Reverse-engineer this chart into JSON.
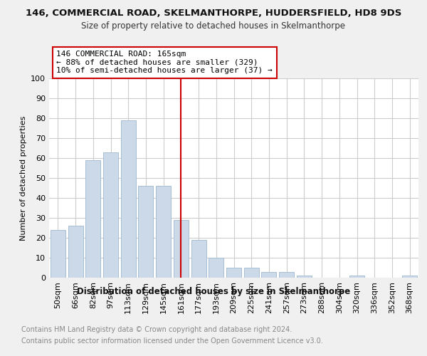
{
  "title": "146, COMMERCIAL ROAD, SKELMANTHORPE, HUDDERSFIELD, HD8 9DS",
  "subtitle": "Size of property relative to detached houses in Skelmanthorpe",
  "xlabel": "Distribution of detached houses by size in Skelmanthorpe",
  "ylabel": "Number of detached properties",
  "footnote1": "Contains HM Land Registry data © Crown copyright and database right 2024.",
  "footnote2": "Contains public sector information licensed under the Open Government Licence v3.0.",
  "annotation_line1": "146 COMMERCIAL ROAD: 165sqm",
  "annotation_line2": "← 88% of detached houses are smaller (329)",
  "annotation_line3": "10% of semi-detached houses are larger (37) →",
  "bar_categories": [
    "50sqm",
    "66sqm",
    "82sqm",
    "97sqm",
    "113sqm",
    "129sqm",
    "145sqm",
    "161sqm",
    "177sqm",
    "193sqm",
    "209sqm",
    "225sqm",
    "241sqm",
    "257sqm",
    "273sqm",
    "288sqm",
    "304sqm",
    "320sqm",
    "336sqm",
    "352sqm",
    "368sqm"
  ],
  "bar_values": [
    24,
    26,
    59,
    63,
    79,
    46,
    46,
    29,
    19,
    10,
    5,
    5,
    3,
    3,
    1,
    0,
    0,
    1,
    0,
    0,
    1
  ],
  "bar_color": "#ccd9e8",
  "bar_edge_color": "#a8bfd4",
  "vertical_line_color": "#cc0000",
  "box_edge_color": "#cc0000",
  "vline_index": 7,
  "ylim": [
    0,
    100
  ],
  "yticks": [
    0,
    10,
    20,
    30,
    40,
    50,
    60,
    70,
    80,
    90,
    100
  ],
  "background_color": "#f0f0f0",
  "plot_bg_color": "#ffffff",
  "grid_color": "#cccccc"
}
